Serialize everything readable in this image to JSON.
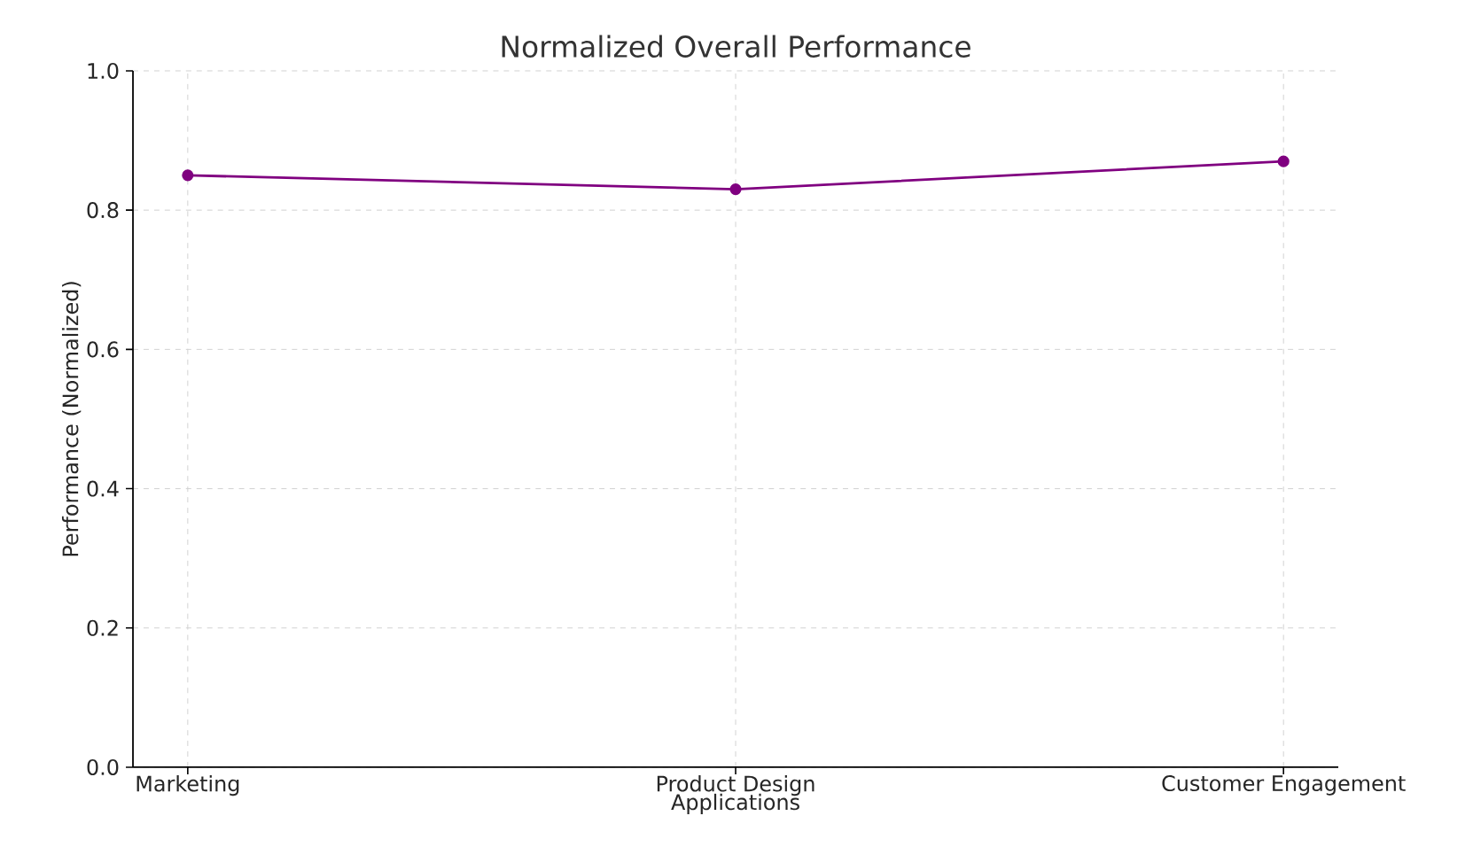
{
  "chart_data": {
    "type": "line",
    "title": "Normalized Overall Performance",
    "xlabel": "Applications",
    "ylabel": "Performance (Normalized)",
    "categories": [
      "Marketing",
      "Product Design",
      "Customer Engagement"
    ],
    "series": [
      {
        "color": "#800080",
        "values": [
          0.85,
          0.83,
          0.87
        ]
      }
    ],
    "ylim": [
      0.0,
      1.0
    ],
    "yticks": [
      {
        "value": 0.0,
        "label": "0.0"
      },
      {
        "value": 0.2,
        "label": "0.2"
      },
      {
        "value": 0.4,
        "label": "0.4"
      },
      {
        "value": 0.6,
        "label": "0.6"
      },
      {
        "value": 0.8,
        "label": "0.8"
      },
      {
        "value": 1.0,
        "label": "1.0"
      }
    ],
    "grid": true,
    "marker": "circle",
    "line_style": "solid"
  }
}
